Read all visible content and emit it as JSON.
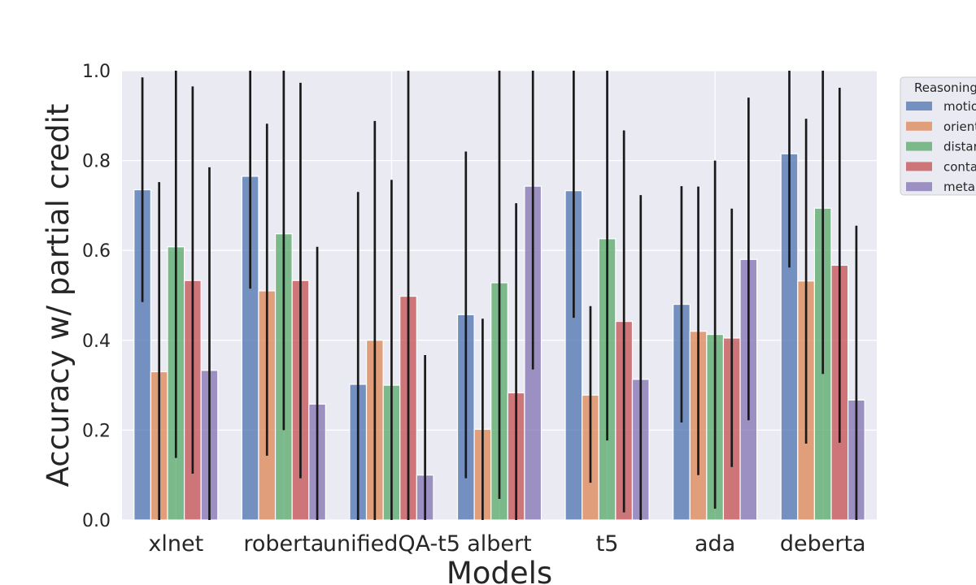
{
  "chart_data": {
    "type": "bar",
    "title": "",
    "xlabel": "Models",
    "ylabel": "Accuracy w/ partial credit",
    "ylim": [
      0,
      1.0
    ],
    "yticks": [
      "0.0",
      "0.2",
      "0.4",
      "0.6",
      "0.8",
      "1.0"
    ],
    "grid": true,
    "legend_position": "right-top (outside, clipped)",
    "legend_title": "Reasoning",
    "categories": [
      "xlnet",
      "roberta",
      "unifiedQA-t5",
      "albert",
      "t5",
      "ada",
      "deberta"
    ],
    "series": [
      {
        "name": "motion",
        "legend_label": "motio",
        "color": "#4c72b0",
        "values": [
          0.735,
          0.765,
          0.302,
          0.457,
          0.733,
          0.48,
          0.815
        ],
        "error_low": [
          0.485,
          0.515,
          0.0,
          0.093,
          0.45,
          0.217,
          0.562
        ],
        "error_high": [
          0.985,
          1.0,
          0.73,
          0.82,
          1.0,
          0.743,
          1.0
        ]
      },
      {
        "name": "orientation",
        "legend_label": "orient",
        "color": "#dd8452",
        "values": [
          0.33,
          0.51,
          0.4,
          0.202,
          0.278,
          0.42,
          0.532
        ],
        "error_low": [
          0.0,
          0.143,
          0.0,
          0.0,
          0.083,
          0.1,
          0.17
        ],
        "error_high": [
          0.752,
          0.882,
          0.888,
          0.448,
          0.476,
          0.742,
          0.893
        ]
      },
      {
        "name": "distance",
        "legend_label": "distar",
        "color": "#55a868",
        "values": [
          0.608,
          0.637,
          0.3,
          0.528,
          0.626,
          0.413,
          0.694
        ],
        "error_low": [
          0.138,
          0.2,
          0.0,
          0.047,
          0.177,
          0.025,
          0.325
        ],
        "error_high": [
          1.0,
          1.0,
          0.757,
          1.0,
          1.0,
          0.8,
          1.0
        ]
      },
      {
        "name": "containment",
        "legend_label": "conta",
        "color": "#c44e52",
        "values": [
          0.533,
          0.533,
          0.498,
          0.283,
          0.442,
          0.405,
          0.567
        ],
        "error_low": [
          0.103,
          0.093,
          0.0,
          0.0,
          0.017,
          0.118,
          0.172
        ],
        "error_high": [
          0.965,
          0.973,
          1.0,
          0.705,
          0.867,
          0.693,
          0.962
        ]
      },
      {
        "name": "metaphor",
        "legend_label": "metap",
        "color": "#8172b3",
        "values": [
          0.333,
          0.258,
          0.1,
          0.743,
          0.313,
          0.58,
          0.267
        ],
        "error_low": [
          0.0,
          0.0,
          0.0,
          0.335,
          0.0,
          0.222,
          0.0
        ],
        "error_high": [
          0.785,
          0.608,
          0.367,
          1.0,
          0.723,
          0.94,
          0.655
        ]
      }
    ]
  }
}
